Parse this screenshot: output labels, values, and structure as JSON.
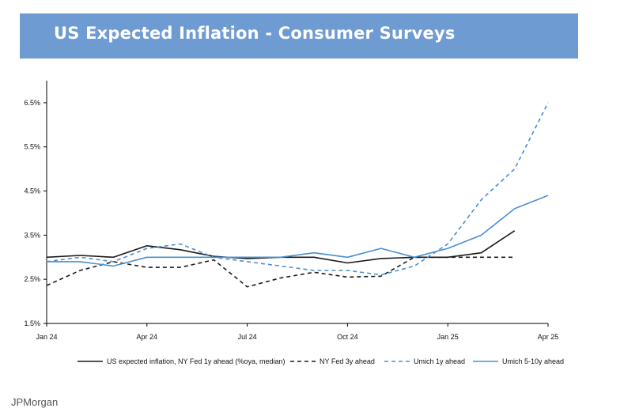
{
  "title": "US Expected Inflation - Consumer Surveys",
  "footer": "JPMorgan",
  "colors": {
    "banner": "#6f9bd3",
    "black": "#1a1a1a",
    "blue": "#4a8fcf"
  },
  "chart_data": {
    "type": "line",
    "title": "US Expected Inflation - Consumer Surveys",
    "xlabel": "",
    "ylabel": "",
    "ylim": [
      1.5,
      7.0
    ],
    "x_ticks": [
      "Jan 24",
      "Apr 24",
      "Jul 24",
      "Oct 24",
      "Jan 25",
      "Apr 25"
    ],
    "y_ticks": [
      "1.5%",
      "2.5%",
      "3.5%",
      "4.5%",
      "5.5%",
      "6.5%"
    ],
    "y_tick_values": [
      1.5,
      2.5,
      3.5,
      4.5,
      5.5,
      6.5
    ],
    "x": [
      "Jan 24",
      "Feb 24",
      "Mar 24",
      "Apr 24",
      "May 24",
      "Jun 24",
      "Jul 24",
      "Aug 24",
      "Sep 24",
      "Oct 24",
      "Nov 24",
      "Dec 24",
      "Jan 25",
      "Feb 25",
      "Mar 25",
      "Apr 25"
    ],
    "legend": [
      "US expected inflation, NY Fed 1y ahead (%oya, median)",
      "NY Fed 3y ahead",
      "Umich 1y ahead",
      "Umich 5-10y ahead"
    ],
    "series": [
      {
        "name": "US expected inflation, NY Fed 1y ahead (%oya, median)",
        "style": "solid",
        "color": "#1a1a1a",
        "values": [
          3.0,
          3.04,
          3.0,
          3.26,
          3.17,
          3.02,
          2.97,
          3.0,
          3.0,
          2.87,
          2.97,
          3.0,
          3.0,
          3.1,
          3.6,
          null
        ]
      },
      {
        "name": "NY Fed 3y ahead",
        "style": "dashed",
        "color": "#1a1a1a",
        "values": [
          2.36,
          2.7,
          2.9,
          2.77,
          2.77,
          2.94,
          2.33,
          2.53,
          2.66,
          2.55,
          2.57,
          3.0,
          3.0,
          3.0,
          3.0,
          null
        ]
      },
      {
        "name": "Umich 1y ahead",
        "style": "dashed",
        "color": "#4a8fcf",
        "values": [
          2.9,
          3.0,
          2.9,
          3.2,
          3.3,
          3.0,
          2.9,
          2.8,
          2.7,
          2.7,
          2.6,
          2.8,
          3.3,
          4.3,
          5.0,
          6.5
        ]
      },
      {
        "name": "Umich 5-10y ahead",
        "style": "solid",
        "color": "#4a8fcf",
        "values": [
          2.9,
          2.9,
          2.8,
          3.0,
          3.0,
          3.0,
          3.0,
          3.0,
          3.1,
          3.0,
          3.2,
          3.0,
          3.2,
          3.5,
          4.1,
          4.4
        ]
      }
    ]
  }
}
